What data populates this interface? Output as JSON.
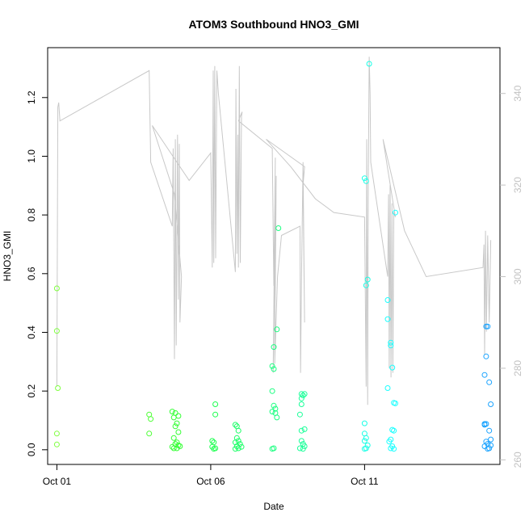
{
  "chart_data": {
    "type": "scatter",
    "title": "ATOM3 Southbound HNO3_GMI",
    "xlabel": "Date",
    "ylabel": "HNO3_GMI",
    "x_unit": "days after Oct 01",
    "x_tick_labels": [
      "Oct 01",
      "Oct 06",
      "Oct 11"
    ],
    "x_tick_values": [
      0,
      5,
      10
    ],
    "xlim": [
      -0.3,
      14.4
    ],
    "y_ticks": [
      0.0,
      0.2,
      0.4,
      0.6,
      0.8,
      1.0,
      1.2
    ],
    "y_tick_labels": [
      "0.0",
      "0.2",
      "0.4",
      "0.6",
      "0.8",
      "1.0",
      "1.2"
    ],
    "ylim": [
      -0.05,
      1.37
    ],
    "y2_ticks": [
      260,
      280,
      300,
      320,
      340
    ],
    "y2_tick_labels": [
      "260",
      "280",
      "300",
      "320",
      "340"
    ],
    "y2lim": [
      259,
      350
    ],
    "grid": false,
    "legend": "none",
    "point_color_scale": [
      "#7fff00",
      "#00ff00",
      "#00ff80",
      "#00ffff",
      "#0080ff"
    ],
    "line_color": "#c8c8c8",
    "series": [
      {
        "kind": "points",
        "marker": "open-circle",
        "points": [
          [
            0.0,
            0.55,
            "#7fff3f"
          ],
          [
            0.0,
            0.405,
            "#7fff3f"
          ],
          [
            0.03,
            0.21,
            "#7fff3f"
          ],
          [
            0.0,
            0.055,
            "#7fff3f"
          ],
          [
            0.0,
            0.018,
            "#7fff3f"
          ],
          [
            3.0,
            0.12,
            "#4cff33"
          ],
          [
            3.05,
            0.105,
            "#4cff33"
          ],
          [
            3.0,
            0.055,
            "#4cff33"
          ],
          [
            3.75,
            0.13,
            "#33ff33"
          ],
          [
            3.85,
            0.125,
            "#33ff33"
          ],
          [
            3.95,
            0.115,
            "#33ff33"
          ],
          [
            3.8,
            0.11,
            "#33ff33"
          ],
          [
            3.9,
            0.09,
            "#33ff33"
          ],
          [
            3.85,
            0.08,
            "#33ff33"
          ],
          [
            3.95,
            0.06,
            "#33ff33"
          ],
          [
            3.8,
            0.04,
            "#33ff33"
          ],
          [
            3.9,
            0.025,
            "#33ff33"
          ],
          [
            3.85,
            0.02,
            "#33ff33"
          ],
          [
            3.95,
            0.015,
            "#33ff33"
          ],
          [
            3.75,
            0.01,
            "#33ff33"
          ],
          [
            3.8,
            0.005,
            "#33ff33"
          ],
          [
            3.9,
            0.005,
            "#33ff33"
          ],
          [
            4.0,
            0.012,
            "#33ff33"
          ],
          [
            5.15,
            0.155,
            "#1aff4d"
          ],
          [
            5.15,
            0.12,
            "#1aff4d"
          ],
          [
            5.05,
            0.03,
            "#1aff4d"
          ],
          [
            5.1,
            0.025,
            "#1aff4d"
          ],
          [
            5.05,
            0.01,
            "#1aff4d"
          ],
          [
            5.15,
            0.005,
            "#1aff4d"
          ],
          [
            5.1,
            0.003,
            "#1aff4d"
          ],
          [
            5.8,
            0.085,
            "#1aff66"
          ],
          [
            5.85,
            0.08,
            "#1aff66"
          ],
          [
            5.9,
            0.065,
            "#1aff66"
          ],
          [
            5.85,
            0.04,
            "#1aff66"
          ],
          [
            5.9,
            0.03,
            "#1aff66"
          ],
          [
            5.8,
            0.025,
            "#1aff66"
          ],
          [
            5.95,
            0.02,
            "#1aff66"
          ],
          [
            5.85,
            0.012,
            "#1aff66"
          ],
          [
            5.9,
            0.005,
            "#1aff66"
          ],
          [
            5.8,
            0.003,
            "#1aff66"
          ],
          [
            6.0,
            0.01,
            "#1aff66"
          ],
          [
            7.2,
            0.755,
            "#1aff80"
          ],
          [
            7.15,
            0.41,
            "#1aff80"
          ],
          [
            7.05,
            0.35,
            "#1aff80"
          ],
          [
            7.0,
            0.285,
            "#1aff80"
          ],
          [
            7.05,
            0.275,
            "#1aff80"
          ],
          [
            7.0,
            0.2,
            "#1aff80"
          ],
          [
            7.05,
            0.15,
            "#1aff80"
          ],
          [
            7.1,
            0.14,
            "#1aff80"
          ],
          [
            7.0,
            0.13,
            "#1aff80"
          ],
          [
            7.1,
            0.125,
            "#1aff80"
          ],
          [
            7.15,
            0.11,
            "#1aff80"
          ],
          [
            7.05,
            0.005,
            "#1aff80"
          ],
          [
            7.0,
            0.003,
            "#1aff80"
          ],
          [
            7.95,
            0.19,
            "#1aff99"
          ],
          [
            8.0,
            0.185,
            "#1aff99"
          ],
          [
            7.95,
            0.175,
            "#1aff99"
          ],
          [
            8.05,
            0.19,
            "#1aff99"
          ],
          [
            7.95,
            0.155,
            "#1aff99"
          ],
          [
            7.9,
            0.12,
            "#1aff99"
          ],
          [
            8.05,
            0.07,
            "#1aff99"
          ],
          [
            7.95,
            0.065,
            "#1aff99"
          ],
          [
            7.95,
            0.03,
            "#1aff99"
          ],
          [
            8.0,
            0.02,
            "#1aff99"
          ],
          [
            8.05,
            0.012,
            "#1aff99"
          ],
          [
            7.9,
            0.005,
            "#1aff99"
          ],
          [
            8.0,
            0.003,
            "#1aff99"
          ],
          [
            10.15,
            1.315,
            "#1affe6"
          ],
          [
            10.0,
            0.925,
            "#1affe6"
          ],
          [
            10.05,
            0.915,
            "#1affe6"
          ],
          [
            10.1,
            0.58,
            "#1affe6"
          ],
          [
            10.05,
            0.56,
            "#1affe6"
          ],
          [
            10.0,
            0.09,
            "#1affe6"
          ],
          [
            10.0,
            0.055,
            "#1affe6"
          ],
          [
            10.05,
            0.04,
            "#1affe6"
          ],
          [
            10.0,
            0.03,
            "#1affe6"
          ],
          [
            10.1,
            0.015,
            "#1affe6"
          ],
          [
            10.05,
            0.005,
            "#1affe6"
          ],
          [
            10.0,
            0.003,
            "#1affe6"
          ],
          [
            11.0,
            0.808,
            "#1affff"
          ],
          [
            10.75,
            0.51,
            "#1affff"
          ],
          [
            10.75,
            0.445,
            "#1affff"
          ],
          [
            10.85,
            0.365,
            "#1affff"
          ],
          [
            10.85,
            0.355,
            "#1affff"
          ],
          [
            10.9,
            0.28,
            "#1affff"
          ],
          [
            10.75,
            0.21,
            "#1affff"
          ],
          [
            10.95,
            0.16,
            "#1affff"
          ],
          [
            11.0,
            0.158,
            "#1affff"
          ],
          [
            10.9,
            0.068,
            "#1affff"
          ],
          [
            10.95,
            0.065,
            "#1affff"
          ],
          [
            10.85,
            0.035,
            "#1affff"
          ],
          [
            10.8,
            0.028,
            "#1affff"
          ],
          [
            10.9,
            0.012,
            "#1affff"
          ],
          [
            10.85,
            0.005,
            "#1affff"
          ],
          [
            10.95,
            0.003,
            "#1affff"
          ],
          [
            13.95,
            0.42,
            "#1aa3ff"
          ],
          [
            14.0,
            0.42,
            "#1aa3ff"
          ],
          [
            13.95,
            0.318,
            "#1aa3ff"
          ],
          [
            13.9,
            0.255,
            "#1aa3ff"
          ],
          [
            14.05,
            0.23,
            "#1aa3ff"
          ],
          [
            14.1,
            0.155,
            "#1aa3ff"
          ],
          [
            13.9,
            0.088,
            "#1aa3ff"
          ],
          [
            13.95,
            0.088,
            "#1aa3ff"
          ],
          [
            13.9,
            0.085,
            "#1aa3ff"
          ],
          [
            14.05,
            0.065,
            "#1aa3ff"
          ],
          [
            14.1,
            0.035,
            "#1aa3ff"
          ],
          [
            13.95,
            0.028,
            "#1aa3ff"
          ],
          [
            14.0,
            0.02,
            "#1aa3ff"
          ],
          [
            14.1,
            0.015,
            "#1aa3ff"
          ],
          [
            13.9,
            0.012,
            "#1aa3ff"
          ],
          [
            14.05,
            0.005,
            "#1aa3ff"
          ],
          [
            14.0,
            0.003,
            "#1aa3ff"
          ]
        ]
      },
      {
        "kind": "line",
        "axis": "right",
        "points": [
          [
            0.0,
            276
          ],
          [
            0.03,
            337
          ],
          [
            0.06,
            338
          ],
          [
            0.1,
            334
          ],
          [
            3.0,
            345
          ],
          [
            3.05,
            325
          ],
          [
            3.75,
            311
          ],
          [
            3.78,
            328
          ],
          [
            3.82,
            282
          ],
          [
            3.85,
            330
          ],
          [
            3.88,
            285
          ],
          [
            3.92,
            331
          ],
          [
            3.95,
            295
          ],
          [
            3.98,
            329
          ],
          [
            4.0,
            290
          ],
          [
            4.05,
            300
          ],
          [
            3.82,
            318
          ],
          [
            3.1,
            333
          ],
          [
            4.3,
            321
          ],
          [
            5.0,
            327
          ],
          [
            5.05,
            302
          ],
          [
            5.08,
            345
          ],
          [
            5.1,
            303
          ],
          [
            5.13,
            346
          ],
          [
            5.16,
            304
          ],
          [
            5.2,
            345
          ],
          [
            5.25,
            340
          ],
          [
            5.8,
            301
          ],
          [
            5.82,
            341
          ],
          [
            5.85,
            305
          ],
          [
            5.88,
            331
          ],
          [
            5.9,
            302
          ],
          [
            5.93,
            346
          ],
          [
            5.96,
            303
          ],
          [
            6.0,
            335
          ],
          [
            6.02,
            336
          ],
          [
            5.9,
            334
          ],
          [
            7.0,
            328
          ],
          [
            7.05,
            298
          ],
          [
            7.1,
            326
          ],
          [
            7.03,
            279
          ],
          [
            7.13,
            322
          ],
          [
            7.08,
            281
          ],
          [
            7.17,
            300
          ],
          [
            7.3,
            309
          ],
          [
            7.9,
            311
          ],
          [
            7.92,
            279
          ],
          [
            7.95,
            300
          ],
          [
            8.0,
            325
          ],
          [
            8.05,
            290
          ],
          [
            8.0,
            320
          ],
          [
            8.05,
            324
          ],
          [
            6.8,
            330
          ],
          [
            7.6,
            324
          ],
          [
            8.4,
            317
          ],
          [
            9.0,
            314
          ],
          [
            10.0,
            313
          ],
          [
            10.05,
            276
          ],
          [
            10.07,
            330
          ],
          [
            10.1,
            272
          ],
          [
            10.12,
            320
          ],
          [
            10.15,
            348
          ],
          [
            10.18,
            340
          ],
          [
            10.2,
            325
          ],
          [
            10.75,
            300
          ],
          [
            10.78,
            318
          ],
          [
            10.8,
            280
          ],
          [
            10.83,
            320
          ],
          [
            10.86,
            278
          ],
          [
            10.89,
            316
          ],
          [
            10.92,
            279
          ],
          [
            10.95,
            314
          ],
          [
            11.0,
            313
          ],
          [
            10.6,
            330
          ],
          [
            11.3,
            310
          ],
          [
            12.0,
            300
          ],
          [
            13.85,
            302
          ],
          [
            13.88,
            307
          ],
          [
            13.9,
            283
          ],
          [
            13.93,
            310
          ],
          [
            13.96,
            288
          ],
          [
            14.0,
            309
          ],
          [
            14.05,
            290
          ],
          [
            14.1,
            308
          ]
        ]
      }
    ]
  }
}
